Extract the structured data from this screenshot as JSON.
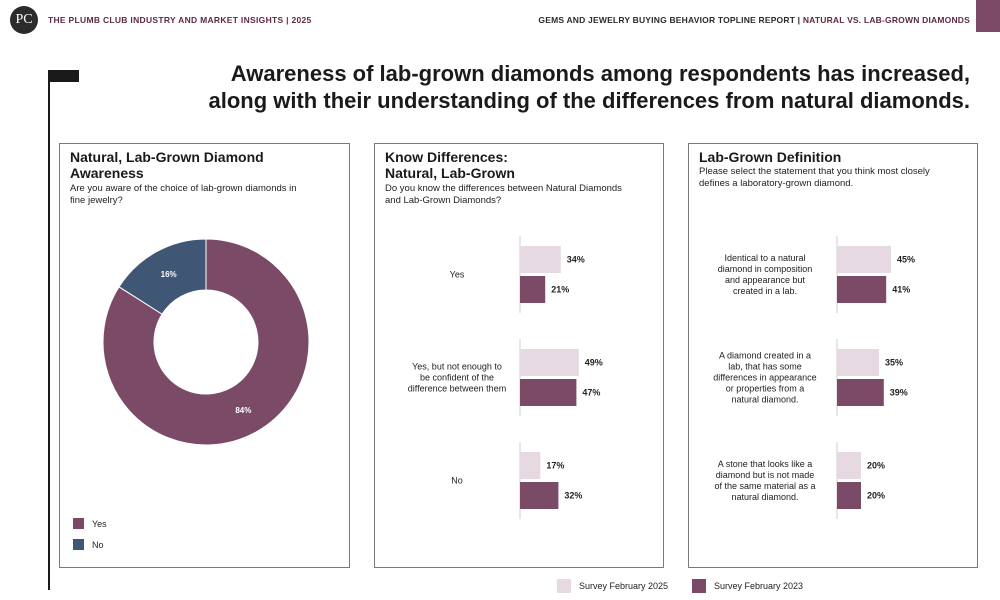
{
  "header": {
    "logo_text": "PC",
    "left_text": "THE PLUMB CLUB INDUSTRY AND MARKET INSIGHTS | 2025",
    "right_text_main": "GEMS AND JEWELRY BUYING BEHAVIOR TOPLINE REPORT | ",
    "right_text_accent": "NATURAL VS. LAB-GROWN DIAMONDS"
  },
  "headline": {
    "line1": "Awareness of lab-grown diamonds among respondents has increased,",
    "line2": "along with their understanding of the differences from natural diamonds."
  },
  "colors": {
    "plum": "#7a4a66",
    "light": "#e6d9e2",
    "navy": "#3f5775",
    "accent": "#5e2a45"
  },
  "panels": {
    "awareness": {
      "title_line1": "Natural, Lab-Grown Diamond",
      "title_line2": "Awareness",
      "subtitle_line1": "Are you aware of the choice of lab-grown diamonds in",
      "subtitle_line2": "fine jewelry?",
      "legend": [
        {
          "label": "Yes",
          "color": "#7a4a66"
        },
        {
          "label": "No",
          "color": "#3f5775"
        }
      ]
    },
    "differences": {
      "title_line1": "Know Differences:",
      "title_line2": "Natural, Lab-Grown",
      "subtitle_line1": "Do you know the differences between Natural Diamonds",
      "subtitle_line2": "and Lab-Grown Diamonds?"
    },
    "definition": {
      "title": "Lab-Grown Definition",
      "subtitle_line1": "Please select the statement that you think most closely",
      "subtitle_line2": "defines a laboratory-grown diamond."
    }
  },
  "legend_bottom": [
    {
      "label": "Survey February 2025",
      "color": "#e6d9e2"
    },
    {
      "label": "Survey February 2023",
      "color": "#7a4a66"
    }
  ],
  "chart_data": [
    {
      "type": "pie",
      "title": "Natural, Lab-Grown Diamond Awareness",
      "categories": [
        "Yes",
        "No"
      ],
      "values": [
        84,
        16
      ],
      "labels": [
        "84%",
        "16%"
      ],
      "colors": [
        "#7a4a66",
        "#3f5775"
      ],
      "donut": true,
      "legend": "bottom-left"
    },
    {
      "type": "bar",
      "orientation": "horizontal",
      "title": "Know Differences: Natural, Lab-Grown",
      "categories": [
        [
          "Yes"
        ],
        [
          "Yes, but not enough to",
          "be confident of the",
          "difference between them"
        ],
        [
          "No"
        ]
      ],
      "series": [
        {
          "name": "Survey February 2025",
          "values": [
            34,
            49,
            17
          ],
          "labels": [
            "34%",
            "49%",
            "17%"
          ],
          "color": "#e6d9e2"
        },
        {
          "name": "Survey February 2023",
          "values": [
            21,
            47,
            32
          ],
          "labels": [
            "21%",
            "47%",
            "32%"
          ],
          "color": "#7a4a66"
        }
      ],
      "xlim": [
        0,
        100
      ],
      "legend": "bottom"
    },
    {
      "type": "bar",
      "orientation": "horizontal",
      "title": "Lab-Grown Definition",
      "categories": [
        [
          "Identical to a natural",
          "diamond in composition",
          "and appearance but",
          "created in a lab."
        ],
        [
          "A diamond created in a",
          "lab, that has some",
          "differences in appearance",
          "or properties from a",
          "natural diamond."
        ],
        [
          "A stone that looks like a",
          "diamond but is not made",
          "of the same material as a",
          "natural diamond."
        ]
      ],
      "series": [
        {
          "name": "Survey February 2025",
          "values": [
            45,
            35,
            20
          ],
          "labels": [
            "45%",
            "35%",
            "20%"
          ],
          "color": "#e6d9e2"
        },
        {
          "name": "Survey February 2023",
          "values": [
            41,
            39,
            20
          ],
          "labels": [
            "41%",
            "39%",
            "20%"
          ],
          "color": "#7a4a66"
        }
      ],
      "xlim": [
        0,
        100
      ],
      "legend": "bottom"
    }
  ]
}
